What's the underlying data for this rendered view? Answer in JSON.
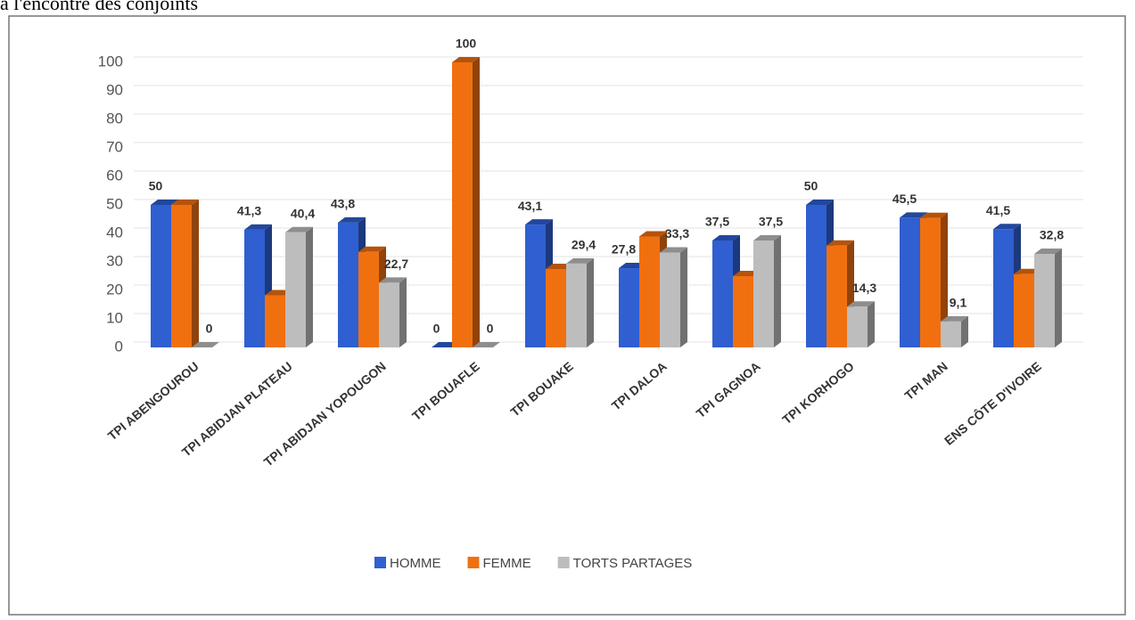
{
  "caption": "à l'encontre des conjoints",
  "chart_data": {
    "type": "bar3d",
    "categories": [
      "TPI ABENGOUROU",
      "TPI ABIDJAN PLATEAU",
      "TPI ABIDJAN YOPOUGON",
      "TPI BOUAFLE",
      "TPI BOUAKE",
      "TPI DALOA",
      "TPI GAGNOA",
      "TPI KORHOGO",
      "TPI MAN",
      "ENS CÔTE D'IVOIRE"
    ],
    "series": [
      {
        "name": "HOMME",
        "color": "#2f5fd0",
        "values": [
          50,
          41.3,
          43.8,
          0,
          43.1,
          27.8,
          37.5,
          50,
          45.5,
          41.5
        ],
        "value_labels": [
          "50",
          "41,3",
          "43,8",
          "0",
          "43,1",
          "27,8",
          "37,5",
          "50",
          "45,5",
          "41,5"
        ]
      },
      {
        "name": "FEMME",
        "color": "#f07010",
        "values": [
          50,
          18.3,
          33.5,
          100,
          27.5,
          38.9,
          25,
          35.7,
          45.4,
          25.7
        ],
        "value_labels": [
          null,
          null,
          null,
          "100",
          null,
          null,
          null,
          null,
          null,
          null
        ]
      },
      {
        "name": "TORTS PARTAGES",
        "color": "#bdbdbd",
        "values": [
          0,
          40.4,
          22.7,
          0,
          29.4,
          33.3,
          37.5,
          14.3,
          9.1,
          32.8
        ],
        "value_labels": [
          "0",
          "40,4",
          "22,7",
          "0",
          "29,4",
          "33,3",
          "37,5",
          "14,3",
          "9,1",
          "32,8"
        ]
      }
    ],
    "ylim": [
      0,
      100
    ],
    "yticks": [
      0,
      10,
      20,
      30,
      40,
      50,
      60,
      70,
      80,
      90,
      100
    ],
    "grid": true,
    "legend": "bottom"
  }
}
